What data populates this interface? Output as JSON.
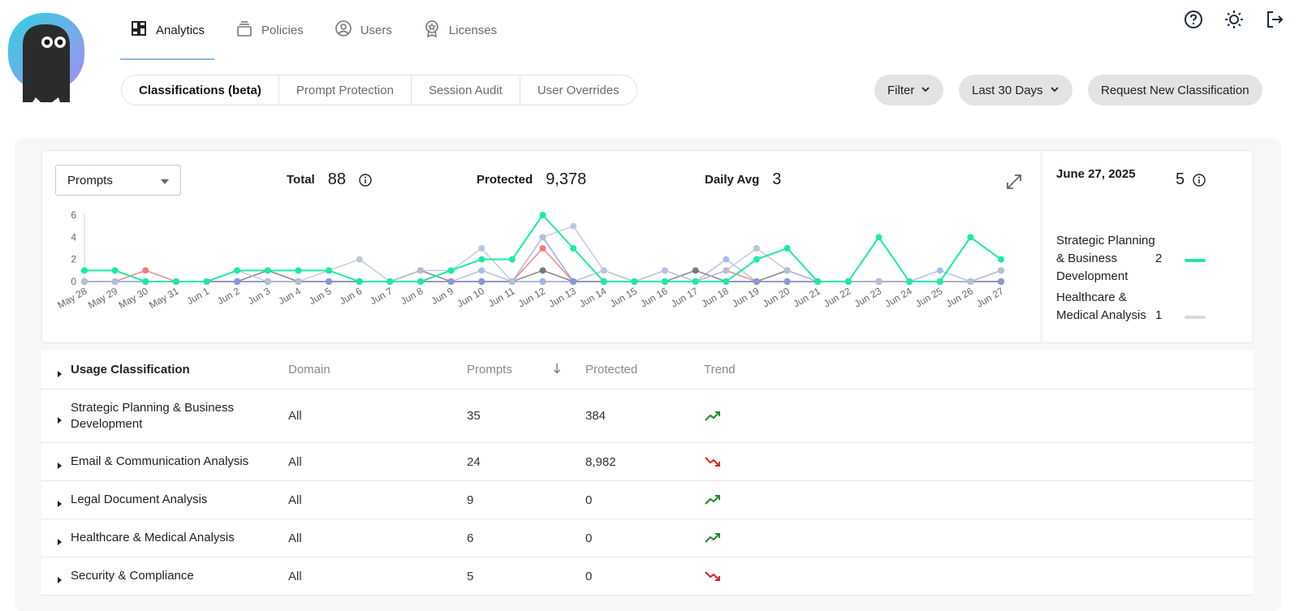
{
  "nav": {
    "tabs": [
      {
        "label": "Analytics",
        "icon": "dashboard-icon",
        "active": true
      },
      {
        "label": "Policies",
        "icon": "stack-icon",
        "active": false
      },
      {
        "label": "Users",
        "icon": "user-circle-icon",
        "active": false
      },
      {
        "label": "Licenses",
        "icon": "badge-icon",
        "active": false
      }
    ],
    "icons": [
      "help-icon",
      "theme-sun-icon",
      "logout-icon"
    ]
  },
  "subtabs": [
    "Classifications (beta)",
    "Prompt Protection",
    "Session Audit",
    "User Overrides"
  ],
  "actions": {
    "filter_label": "Filter",
    "range_label": "Last 30 Days",
    "request_label": "Request New Classification"
  },
  "stats": {
    "metric_select": "Prompts",
    "total_label": "Total",
    "total_value": "88",
    "protected_label": "Protected",
    "protected_value": "9,378",
    "avg_label": "Daily Avg",
    "avg_value": "3"
  },
  "side": {
    "date": "June 27, 2025",
    "count": "5",
    "legend": [
      {
        "name": "Strategic Planning & Business Development",
        "value": "2",
        "color": "#1de9a6"
      },
      {
        "name": "Healthcare & Medical Analysis",
        "value": "1",
        "color": "#d9d9d9"
      }
    ]
  },
  "chart_data": {
    "type": "line",
    "x": [
      "May 28",
      "May 29",
      "May 30",
      "May 31",
      "Jun 1",
      "Jun 2",
      "Jun 3",
      "Jun 4",
      "Jun 5",
      "Jun 6",
      "Jun 7",
      "Jun 8",
      "Jun 9",
      "Jun 10",
      "Jun 11",
      "Jun 12",
      "Jun 13",
      "Jun 14",
      "Jun 15",
      "Jun 16",
      "Jun 17",
      "Jun 18",
      "Jun 19",
      "Jun 20",
      "Jun 21",
      "Jun 22",
      "Jun 23",
      "Jun 24",
      "Jun 25",
      "Jun 26",
      "Jun 27"
    ],
    "ylim": [
      0,
      6
    ],
    "yticks": [
      "0",
      "2",
      "4",
      "6"
    ],
    "grid": false,
    "series": [
      {
        "color": "#1de9a6",
        "values": [
          1,
          1,
          0,
          0,
          0,
          1,
          1,
          1,
          1,
          0,
          0,
          0,
          1,
          2,
          2,
          6,
          3,
          0,
          0,
          0,
          0,
          0,
          2,
          3,
          0,
          0,
          4,
          0,
          0,
          4,
          2
        ]
      },
      {
        "color": "#b7c3d9",
        "values": [
          0,
          0,
          0,
          0,
          0,
          1,
          0,
          0,
          1,
          2,
          0,
          1,
          1,
          3,
          0,
          4,
          5,
          1,
          0,
          1,
          0,
          1,
          3,
          1,
          0,
          0,
          0,
          0,
          0,
          0,
          1
        ]
      },
      {
        "color": "#7f9be0",
        "values": [
          0,
          0,
          0,
          0,
          0,
          0,
          0,
          0,
          0,
          0,
          0,
          0,
          0,
          0,
          0,
          4,
          0,
          0,
          0,
          0,
          0,
          0,
          0,
          0,
          0,
          0,
          0,
          0,
          0,
          0,
          0
        ]
      },
      {
        "color": "#f07070",
        "values": [
          0,
          0,
          1,
          0,
          0,
          0,
          0,
          0,
          0,
          0,
          0,
          0,
          0,
          0,
          0,
          3,
          0,
          0,
          0,
          0,
          0,
          1,
          0,
          0,
          0,
          0,
          0,
          0,
          0,
          0,
          0
        ]
      },
      {
        "color": "#6f6f6f",
        "values": [
          0,
          0,
          0,
          0,
          0,
          0,
          1,
          0,
          0,
          0,
          0,
          1,
          0,
          0,
          0,
          1,
          0,
          0,
          0,
          0,
          1,
          0,
          0,
          1,
          0,
          0,
          0,
          0,
          0,
          0,
          0
        ]
      },
      {
        "color": "#a0b8f0",
        "values": [
          0,
          0,
          0,
          0,
          0,
          0,
          0,
          0,
          0,
          0,
          0,
          0,
          0,
          1,
          0,
          0,
          0,
          1,
          0,
          1,
          0,
          2,
          0,
          0,
          0,
          0,
          0,
          0,
          1,
          0,
          0
        ]
      },
      {
        "color": "#a0785a",
        "values": [
          0,
          0,
          0,
          0,
          0,
          0,
          0,
          0,
          0,
          0,
          0,
          0,
          0,
          0,
          0,
          0,
          0,
          0,
          0,
          0,
          0,
          0,
          0,
          0,
          0,
          0,
          0,
          0,
          0,
          0,
          1
        ]
      }
    ]
  },
  "table": {
    "headers": [
      "Usage Classification",
      "Domain",
      "Prompts",
      "Protected",
      "Trend"
    ],
    "rows": [
      {
        "name": "Strategic Planning & Business Development",
        "domain": "All",
        "prompts": "35",
        "protected": "384",
        "trend": "up"
      },
      {
        "name": "Email & Communication Analysis",
        "domain": "All",
        "prompts": "24",
        "protected": "8,982",
        "trend": "down"
      },
      {
        "name": "Legal Document Analysis",
        "domain": "All",
        "prompts": "9",
        "protected": "0",
        "trend": "up"
      },
      {
        "name": "Healthcare & Medical Analysis",
        "domain": "All",
        "prompts": "6",
        "protected": "0",
        "trend": "up"
      },
      {
        "name": "Security & Compliance",
        "domain": "All",
        "prompts": "5",
        "protected": "0",
        "trend": "down"
      }
    ]
  }
}
